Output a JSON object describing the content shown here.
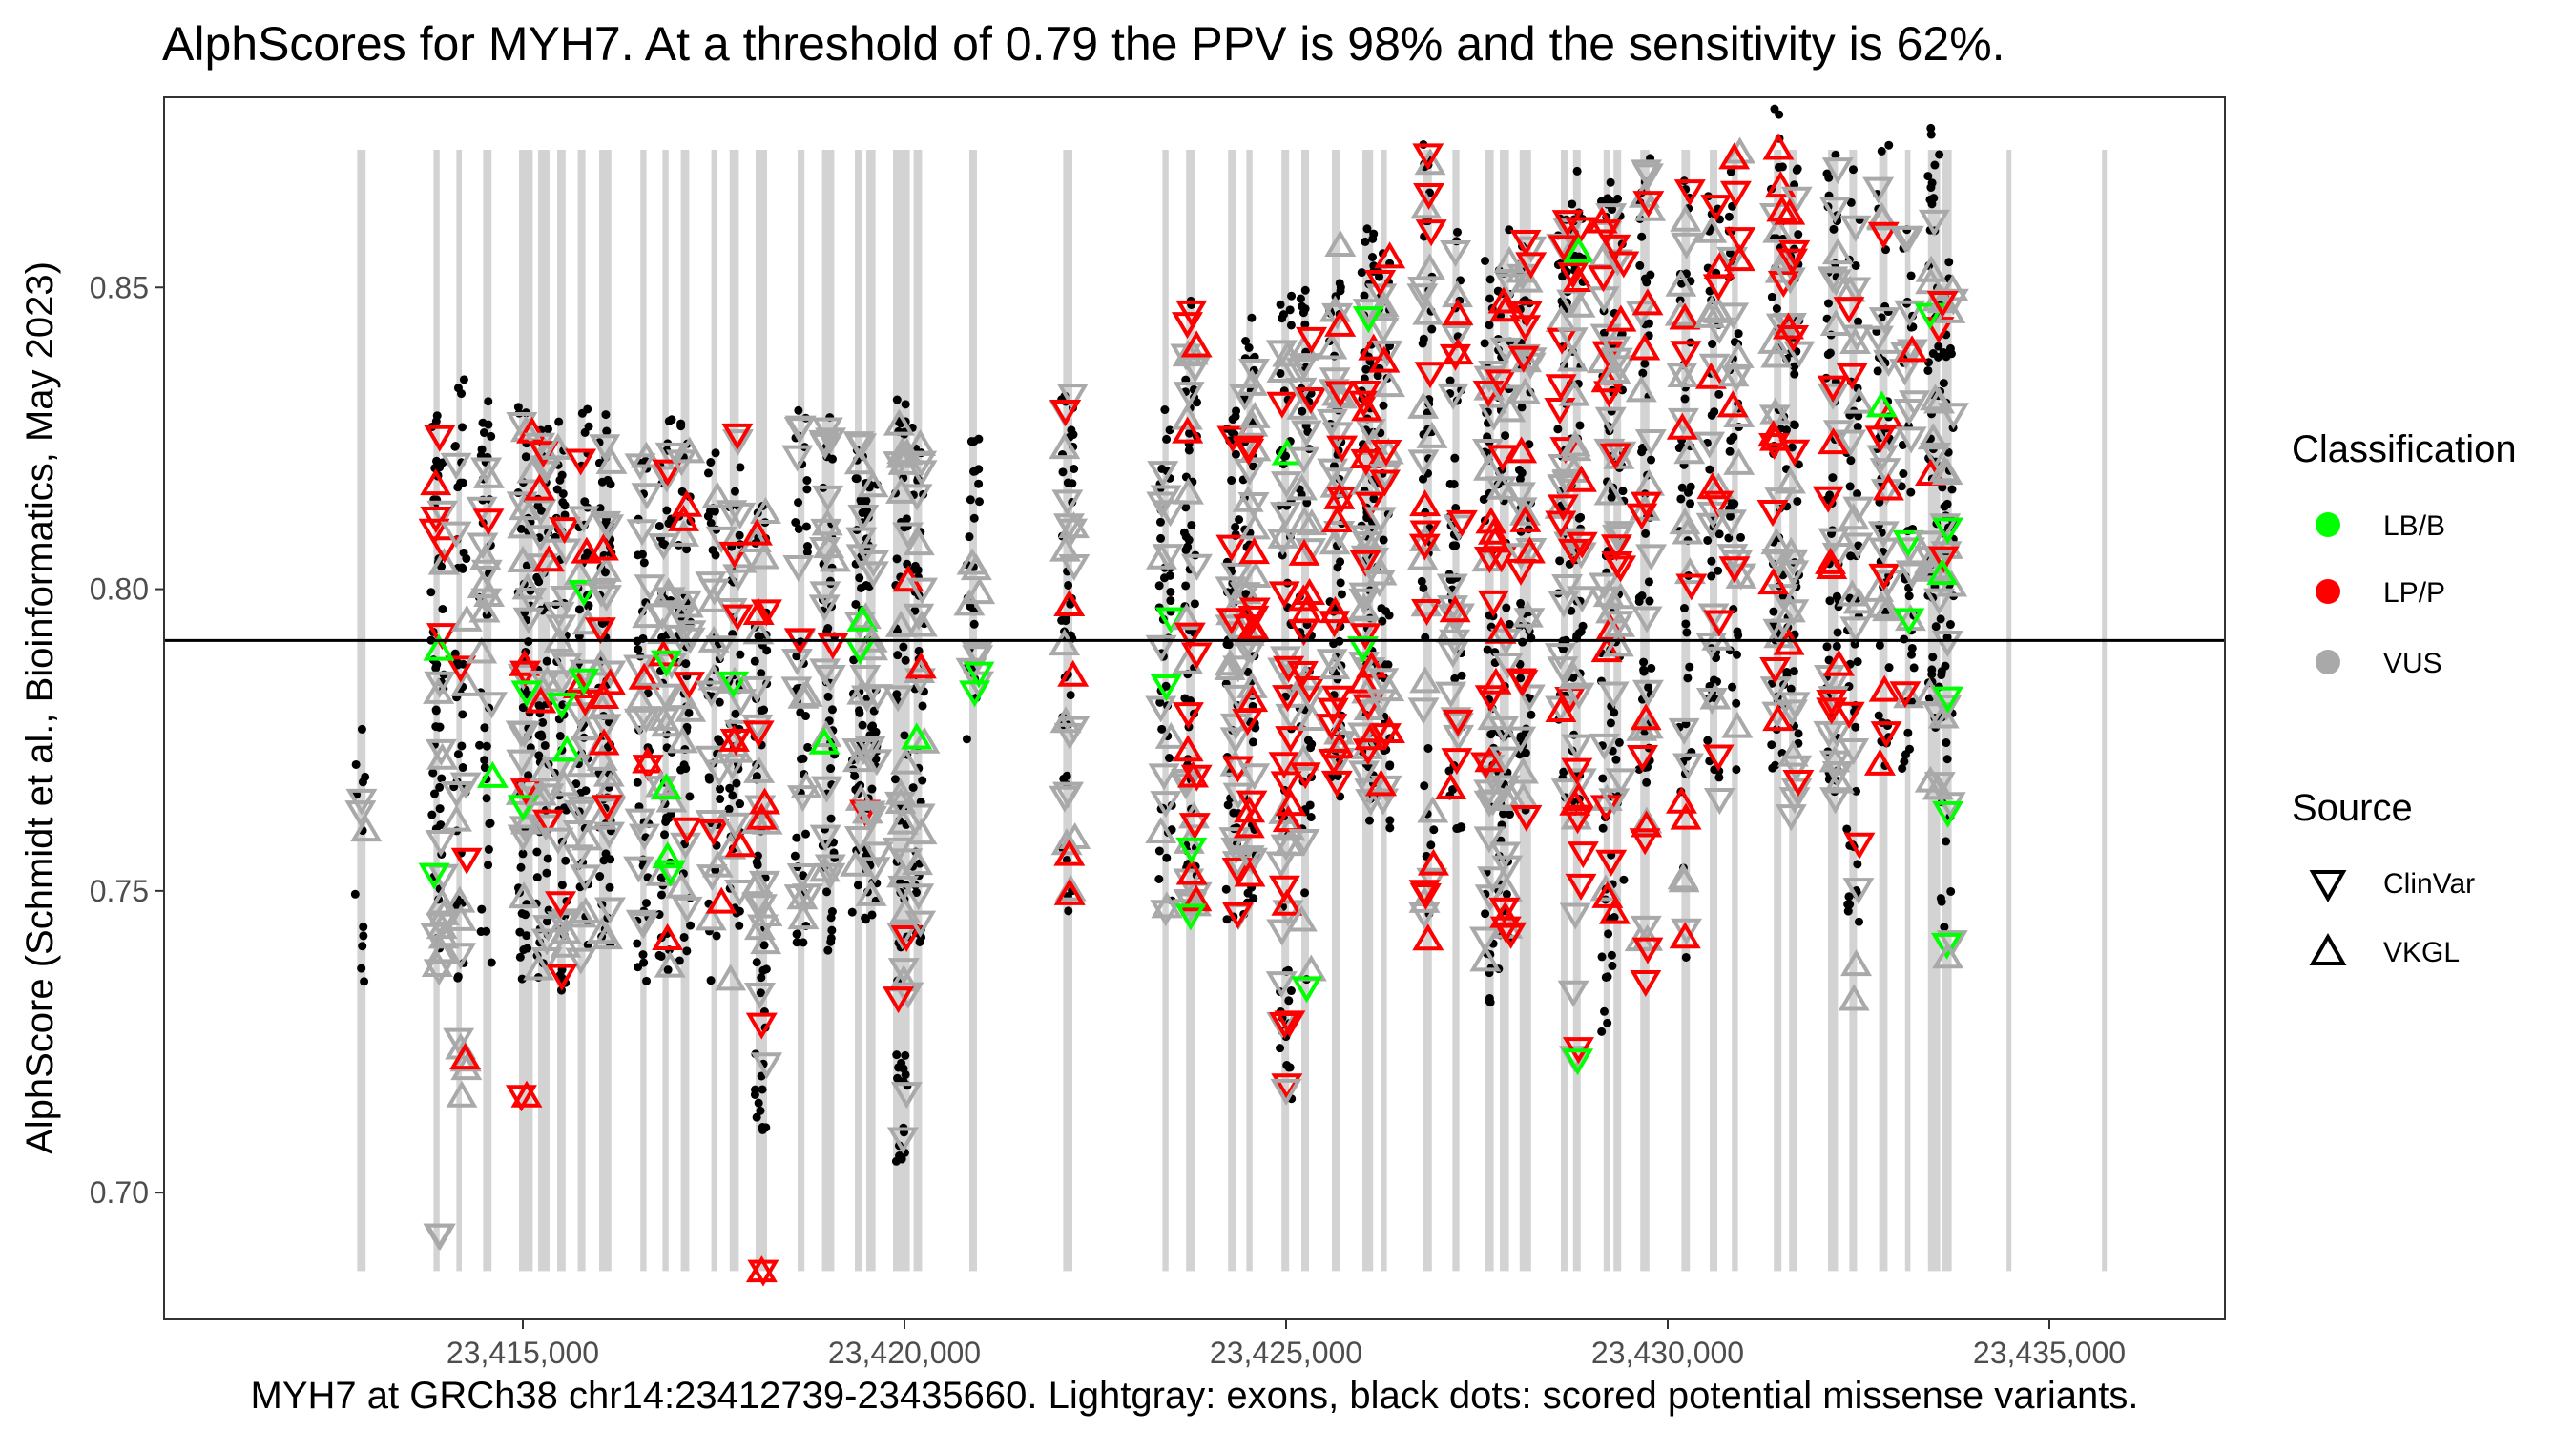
{
  "chart_data": {
    "type": "scatter",
    "title": "AlphScores for MYH7. At a threshold of 0.79 the PPV is 98% and the sensitivity is 62%.",
    "xlabel": "MYH7 at GRCh38 chr14:23412739-23435660. Lightgray: exons, black dots: scored potential missense variants.",
    "ylabel": "AlphScore (Schmidt et al.,  Bioinformatics, May 2023)",
    "xlim": [
      23410300,
      23437300
    ],
    "ylim": [
      0.679,
      0.8815
    ],
    "x_ticks": [
      23415000,
      23420000,
      23425000,
      23430000,
      23435000
    ],
    "x_tick_labels": [
      "23,415,000",
      "23,420,000",
      "23,425,000",
      "23,430,000",
      "23,435,000"
    ],
    "y_ticks": [
      0.7,
      0.75,
      0.8,
      0.85
    ],
    "y_tick_labels": [
      "0.70",
      "0.75",
      "0.80",
      "0.85"
    ],
    "threshold": 0.7915,
    "grid": false,
    "exon_color": "#d3d3d3",
    "exons": [
      [
        23412830,
        23412940
      ],
      [
        23413830,
        23413910
      ],
      [
        23414130,
        23414200
      ],
      [
        23414480,
        23414590
      ],
      [
        23414950,
        23415130
      ],
      [
        23415200,
        23415350
      ],
      [
        23415450,
        23415560
      ],
      [
        23415720,
        23415820
      ],
      [
        23416000,
        23416160
      ],
      [
        23416540,
        23416620
      ],
      [
        23416830,
        23416910
      ],
      [
        23417070,
        23417180
      ],
      [
        23417470,
        23417550
      ],
      [
        23417710,
        23417830
      ],
      [
        23418050,
        23418200
      ],
      [
        23418600,
        23418690
      ],
      [
        23418920,
        23419080
      ],
      [
        23419350,
        23419450
      ],
      [
        23419500,
        23419620
      ],
      [
        23419850,
        23420070
      ],
      [
        23420120,
        23420230
      ],
      [
        23420850,
        23420950
      ],
      [
        23422080,
        23422200
      ],
      [
        23423380,
        23423460
      ],
      [
        23423690,
        23423810
      ],
      [
        23424240,
        23424350
      ],
      [
        23424480,
        23424560
      ],
      [
        23424940,
        23425040
      ],
      [
        23425200,
        23425300
      ],
      [
        23425600,
        23425700
      ],
      [
        23426000,
        23426140
      ],
      [
        23426240,
        23426320
      ],
      [
        23426800,
        23426910
      ],
      [
        23427180,
        23427270
      ],
      [
        23427600,
        23427720
      ],
      [
        23427800,
        23427920
      ],
      [
        23428060,
        23428210
      ],
      [
        23428600,
        23428690
      ],
      [
        23428760,
        23428860
      ],
      [
        23429160,
        23429240
      ],
      [
        23429290,
        23429390
      ],
      [
        23429640,
        23429760
      ],
      [
        23430180,
        23430290
      ],
      [
        23430550,
        23430650
      ],
      [
        23430840,
        23430920
      ],
      [
        23431390,
        23431490
      ],
      [
        23431590,
        23431690
      ],
      [
        23432100,
        23432230
      ],
      [
        23432380,
        23432480
      ],
      [
        23432770,
        23432880
      ],
      [
        23433110,
        23433180
      ],
      [
        23433410,
        23433570
      ],
      [
        23433600,
        23433720
      ],
      [
        23434440,
        23434490
      ],
      [
        23435690,
        23435740
      ]
    ],
    "legend": [
      {
        "title": "Classification",
        "entries": [
          {
            "label": "LB/B",
            "color": "#00ff00"
          },
          {
            "label": "LP/P",
            "color": "#ff0000"
          },
          {
            "label": "VUS",
            "color": "#a9a9a9"
          }
        ]
      },
      {
        "title": "Source",
        "entries": [
          {
            "label": "ClinVar",
            "shape": "triangle-down"
          },
          {
            "label": "VKGL",
            "shape": "triangle-up"
          }
        ]
      }
    ],
    "legend_position": "right",
    "dot_color": "#000000",
    "colors": {
      "LB/B": "#00ff00",
      "LP/P": "#ff0000",
      "VUS": "#a9a9a9"
    },
    "dot_clusters": [
      [
        23412870,
        0.725,
        0.777,
        12
      ],
      [
        23413880,
        0.74,
        0.833,
        45
      ],
      [
        23414180,
        0.735,
        0.835,
        40
      ],
      [
        23414510,
        0.735,
        0.832,
        35
      ],
      [
        23415020,
        0.735,
        0.831,
        50
      ],
      [
        23415260,
        0.735,
        0.83,
        50
      ],
      [
        23415500,
        0.733,
        0.83,
        45
      ],
      [
        23415780,
        0.74,
        0.83,
        45
      ],
      [
        23416080,
        0.74,
        0.832,
        55
      ],
      [
        23416580,
        0.735,
        0.831,
        35
      ],
      [
        23416870,
        0.735,
        0.832,
        45
      ],
      [
        23417120,
        0.735,
        0.83,
        40
      ],
      [
        23417510,
        0.735,
        0.826,
        35
      ],
      [
        23417770,
        0.74,
        0.825,
        40
      ],
      [
        23418120,
        0.71,
        0.817,
        50
      ],
      [
        23418650,
        0.74,
        0.83,
        40
      ],
      [
        23419000,
        0.74,
        0.832,
        45
      ],
      [
        23419400,
        0.745,
        0.83,
        40
      ],
      [
        23419560,
        0.745,
        0.828,
        40
      ],
      [
        23419960,
        0.705,
        0.832,
        60
      ],
      [
        23420180,
        0.74,
        0.828,
        40
      ],
      [
        23420900,
        0.77,
        0.828,
        25
      ],
      [
        23422140,
        0.745,
        0.844,
        40
      ],
      [
        23423420,
        0.74,
        0.83,
        40
      ],
      [
        23423750,
        0.745,
        0.848,
        50
      ],
      [
        23424300,
        0.745,
        0.83,
        40
      ],
      [
        23424520,
        0.745,
        0.845,
        50
      ],
      [
        23424990,
        0.715,
        0.85,
        50
      ],
      [
        23425250,
        0.735,
        0.85,
        40
      ],
      [
        23425650,
        0.76,
        0.86,
        50
      ],
      [
        23426070,
        0.76,
        0.862,
        60
      ],
      [
        23426280,
        0.76,
        0.86,
        40
      ],
      [
        23426850,
        0.74,
        0.875,
        40
      ],
      [
        23427220,
        0.76,
        0.86,
        40
      ],
      [
        23427660,
        0.73,
        0.855,
        45
      ],
      [
        23427860,
        0.735,
        0.86,
        45
      ],
      [
        23428130,
        0.76,
        0.858,
        50
      ],
      [
        23428640,
        0.765,
        0.865,
        40
      ],
      [
        23428810,
        0.76,
        0.87,
        45
      ],
      [
        23429200,
        0.72,
        0.868,
        40
      ],
      [
        23429340,
        0.745,
        0.865,
        40
      ],
      [
        23429700,
        0.765,
        0.872,
        45
      ],
      [
        23430230,
        0.735,
        0.87,
        40
      ],
      [
        23430600,
        0.765,
        0.868,
        40
      ],
      [
        23430880,
        0.77,
        0.875,
        35
      ],
      [
        23431440,
        0.77,
        0.88,
        45
      ],
      [
        23431640,
        0.77,
        0.875,
        45
      ],
      [
        23432160,
        0.765,
        0.872,
        50
      ],
      [
        23432430,
        0.73,
        0.87,
        45
      ],
      [
        23432820,
        0.77,
        0.875,
        45
      ],
      [
        23433150,
        0.77,
        0.865,
        35
      ],
      [
        23433490,
        0.775,
        0.878,
        50
      ],
      [
        23433660,
        0.74,
        0.86,
        45
      ]
    ],
    "variant_clusters": [
      [
        23412880,
        0.76,
        0.766,
        3,
        0,
        0
      ],
      [
        23413900,
        0.79,
        0.828,
        3,
        6,
        0
      ],
      [
        23413900,
        0.735,
        0.79,
        15,
        0,
        1
      ],
      [
        23413900,
        0.693,
        0.693,
        1,
        0,
        0
      ],
      [
        23414200,
        0.716,
        0.826,
        14,
        3,
        0
      ],
      [
        23414530,
        0.76,
        0.825,
        12,
        1,
        1
      ],
      [
        23415050,
        0.74,
        0.83,
        20,
        4,
        1
      ],
      [
        23415050,
        0.716,
        0.716,
        0,
        1,
        0
      ],
      [
        23415280,
        0.733,
        0.826,
        18,
        5,
        0
      ],
      [
        23415510,
        0.74,
        0.829,
        16,
        2,
        1
      ],
      [
        23415800,
        0.735,
        0.825,
        18,
        4,
        1
      ],
      [
        23416090,
        0.74,
        0.83,
        20,
        6,
        0
      ],
      [
        23416590,
        0.741,
        0.83,
        16,
        3,
        0
      ],
      [
        23416880,
        0.735,
        0.829,
        18,
        3,
        2
      ],
      [
        23417130,
        0.74,
        0.828,
        15,
        4,
        0
      ],
      [
        23417530,
        0.738,
        0.825,
        15,
        2,
        0
      ],
      [
        23417790,
        0.735,
        0.826,
        15,
        5,
        1
      ],
      [
        23418130,
        0.716,
        0.815,
        20,
        6,
        0
      ],
      [
        23418130,
        0.687,
        0.687,
        0,
        1,
        0
      ],
      [
        23418660,
        0.745,
        0.83,
        16,
        1,
        0
      ],
      [
        23419020,
        0.745,
        0.828,
        20,
        1,
        1
      ],
      [
        23419420,
        0.745,
        0.828,
        16,
        1,
        1
      ],
      [
        23419580,
        0.748,
        0.826,
        16,
        0,
        0
      ],
      [
        23419980,
        0.709,
        0.83,
        25,
        3,
        0
      ],
      [
        23420200,
        0.74,
        0.826,
        16,
        1,
        1
      ],
      [
        23420920,
        0.775,
        0.805,
        8,
        0,
        1
      ],
      [
        23422160,
        0.747,
        0.833,
        18,
        4,
        0
      ],
      [
        23423430,
        0.745,
        0.825,
        14,
        0,
        1
      ],
      [
        23423760,
        0.745,
        0.845,
        20,
        12,
        1
      ],
      [
        23424310,
        0.745,
        0.828,
        16,
        6,
        0
      ],
      [
        23424530,
        0.75,
        0.84,
        20,
        14,
        0
      ],
      [
        23425000,
        0.717,
        0.845,
        20,
        14,
        1
      ],
      [
        23425270,
        0.735,
        0.845,
        18,
        10,
        0
      ],
      [
        23425660,
        0.765,
        0.858,
        20,
        14,
        0
      ],
      [
        23426080,
        0.765,
        0.855,
        22,
        14,
        1
      ],
      [
        23426290,
        0.762,
        0.858,
        16,
        8,
        0
      ],
      [
        23426860,
        0.742,
        0.872,
        18,
        10,
        0
      ],
      [
        23427230,
        0.765,
        0.858,
        16,
        8,
        0
      ],
      [
        23427680,
        0.734,
        0.855,
        18,
        10,
        0
      ],
      [
        23427880,
        0.74,
        0.858,
        18,
        10,
        0
      ],
      [
        23428140,
        0.76,
        0.86,
        20,
        12,
        0
      ],
      [
        23428650,
        0.765,
        0.866,
        16,
        10,
        0
      ],
      [
        23428820,
        0.722,
        0.868,
        18,
        12,
        1
      ],
      [
        23429210,
        0.748,
        0.866,
        16,
        10,
        0
      ],
      [
        23429350,
        0.745,
        0.862,
        16,
        8,
        0
      ],
      [
        23429710,
        0.735,
        0.87,
        18,
        10,
        0
      ],
      [
        23430240,
        0.74,
        0.868,
        16,
        8,
        0
      ],
      [
        23430610,
        0.765,
        0.865,
        16,
        8,
        0
      ],
      [
        23430890,
        0.775,
        0.873,
        14,
        6,
        0
      ],
      [
        23431450,
        0.775,
        0.872,
        18,
        10,
        0
      ],
      [
        23431650,
        0.762,
        0.87,
        18,
        8,
        0
      ],
      [
        23432170,
        0.765,
        0.87,
        20,
        8,
        0
      ],
      [
        23432440,
        0.732,
        0.868,
        16,
        4,
        0
      ],
      [
        23432830,
        0.77,
        0.868,
        16,
        8,
        1
      ],
      [
        23433160,
        0.775,
        0.86,
        14,
        2,
        1
      ],
      [
        23433500,
        0.765,
        0.862,
        20,
        2,
        1
      ],
      [
        23433670,
        0.739,
        0.85,
        16,
        2,
        2
      ]
    ],
    "highlighted_variants": [
      [
        23414200,
        0.716,
        "VUS",
        "up"
      ],
      [
        23415050,
        0.716,
        "LP/P",
        "up"
      ],
      [
        23418130,
        0.687,
        "LP/P",
        "up"
      ],
      [
        23413900,
        0.693,
        "VUS",
        "down"
      ],
      [
        23419980,
        0.709,
        "VUS",
        "down"
      ],
      [
        23425000,
        0.717,
        "VUS",
        "down"
      ],
      [
        23428820,
        0.722,
        "LB/B",
        "down"
      ],
      [
        23429710,
        0.735,
        "LP/P",
        "down"
      ],
      [
        23425270,
        0.734,
        "LB/B",
        "down"
      ],
      [
        23426860,
        0.742,
        "LP/P",
        "up"
      ],
      [
        23432440,
        0.732,
        "VUS",
        "up"
      ],
      [
        23433670,
        0.739,
        "VUS",
        "up"
      ],
      [
        23426860,
        0.872,
        "LP/P",
        "down"
      ],
      [
        23431450,
        0.873,
        "LP/P",
        "up"
      ],
      [
        23423760,
        0.846,
        "LP/P",
        "down"
      ],
      [
        23433670,
        0.81,
        "LB/B",
        "down"
      ],
      [
        23433670,
        0.763,
        "LB/B",
        "down"
      ],
      [
        23433670,
        0.782,
        "LB/B",
        "down"
      ],
      [
        23433160,
        0.795,
        "LB/B",
        "down"
      ],
      [
        23423430,
        0.784,
        "LB/B",
        "down"
      ],
      [
        23423760,
        0.757,
        "LB/B",
        "down"
      ],
      [
        23419420,
        0.79,
        "LB/B",
        "down"
      ],
      [
        23420920,
        0.783,
        "LB/B",
        "down"
      ],
      [
        23416880,
        0.788,
        "LB/B",
        "down"
      ],
      [
        23415800,
        0.785,
        "LB/B",
        "down"
      ],
      [
        23415510,
        0.781,
        "LB/B",
        "down"
      ],
      [
        23415050,
        0.783,
        "LB/B",
        "down"
      ],
      [
        23416880,
        0.767,
        "LB/B",
        "up"
      ],
      [
        23413900,
        0.79,
        "LB/B",
        "up"
      ],
      [
        23426080,
        0.845,
        "LB/B",
        "down"
      ],
      [
        23428820,
        0.762,
        "LP/P",
        "down"
      ],
      [
        23429210,
        0.749,
        "LP/P",
        "up"
      ],
      [
        23422160,
        0.756,
        "LP/P",
        "up"
      ],
      [
        23415510,
        0.736,
        "LP/P",
        "down"
      ],
      [
        23417790,
        0.775,
        "LP/P",
        "down"
      ],
      [
        23418130,
        0.762,
        "LP/P",
        "up"
      ]
    ]
  }
}
